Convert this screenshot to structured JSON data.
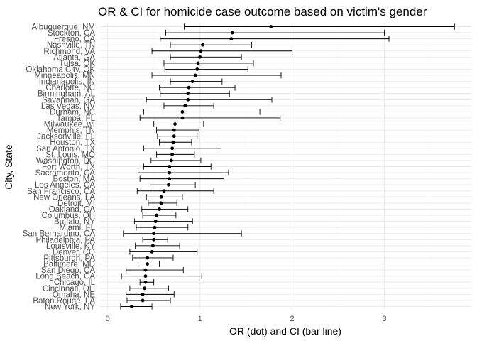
{
  "chart_data": {
    "type": "errorbar",
    "title": "OR & CI for homicide case outcome based on victim's gender",
    "xlabel": "OR (dot) and CI (bar line)",
    "ylabel": "City, State",
    "xlim": [
      -0.09,
      3.95
    ],
    "xticks": [
      0,
      1,
      2,
      3
    ],
    "grid": true,
    "orientation": "horizontal",
    "categories": [
      "Albuquerque, NM",
      "Stockton, CA",
      "Fresno, CA",
      "Nashville, TN",
      "Richmond, VA",
      "Atlanta, GA",
      "Tulsa, OK",
      "Oklahoma City, OK",
      "Minneapolis, MN",
      "Indianapolis, IN",
      "Charlotte, NC",
      "Birmingham, AL",
      "Savannah, GA",
      "Las Vegas, NV",
      "Durham, NC",
      "Tampa, FL",
      "Milwaukee, wI",
      "Memphis, TN",
      "Jacksonville, FL",
      "Houston, TX",
      "San Antonio, TX",
      "St. Louis, MO",
      "Washington, DC",
      "Fort Worth, TX",
      "Sacramento, CA",
      "Boston, MA",
      "Los Angeles, CA",
      "San Francisco, CA",
      "New Orleans, LA",
      "Detroit, MI",
      "Oakland, CA",
      "Columbus, OH",
      "Buffalo, NY",
      "Miami, FL",
      "San Bernardino, CA",
      "Philadelphia, PA",
      "Louisville, KY",
      "Denver, CO",
      "Pittsburgh, PA",
      "Baltimore, MD",
      "San Diego, CA",
      "Long Beach, CA",
      "Chicago, IL",
      "Cincinnati, OH",
      "Omaha, NE",
      "Baton Rouge, LA",
      "New York, NY"
    ],
    "or": [
      1.77,
      1.35,
      1.34,
      1.03,
      1.01,
      1.0,
      0.98,
      0.97,
      0.95,
      0.92,
      0.88,
      0.87,
      0.87,
      0.84,
      0.81,
      0.81,
      0.73,
      0.72,
      0.72,
      0.71,
      0.7,
      0.7,
      0.69,
      0.67,
      0.67,
      0.67,
      0.66,
      0.61,
      0.58,
      0.58,
      0.56,
      0.53,
      0.52,
      0.51,
      0.5,
      0.5,
      0.49,
      0.48,
      0.43,
      0.43,
      0.41,
      0.41,
      0.41,
      0.4,
      0.38,
      0.38,
      0.26
    ],
    "ci_low": [
      0.83,
      0.63,
      0.57,
      0.68,
      0.48,
      0.68,
      0.61,
      0.62,
      0.48,
      0.68,
      0.56,
      0.57,
      0.42,
      0.61,
      0.39,
      0.35,
      0.5,
      0.53,
      0.54,
      0.56,
      0.39,
      0.53,
      0.47,
      0.39,
      0.33,
      0.35,
      0.46,
      0.32,
      0.42,
      0.44,
      0.37,
      0.38,
      0.29,
      0.31,
      0.17,
      0.38,
      0.3,
      0.24,
      0.27,
      0.33,
      0.2,
      0.15,
      0.35,
      0.24,
      0.2,
      0.21,
      0.14
    ],
    "ci_high": [
      3.76,
      3.0,
      3.05,
      1.56,
      2.0,
      1.45,
      1.58,
      1.52,
      1.88,
      1.24,
      1.38,
      1.32,
      1.78,
      1.15,
      1.65,
      1.87,
      1.04,
      0.99,
      0.97,
      0.91,
      1.23,
      0.94,
      1.01,
      1.12,
      1.31,
      1.26,
      0.95,
      1.15,
      0.81,
      0.75,
      0.87,
      0.74,
      0.92,
      0.87,
      1.45,
      0.65,
      0.78,
      0.97,
      0.71,
      0.56,
      0.82,
      1.02,
      0.5,
      0.66,
      0.72,
      0.68,
      0.48
    ]
  }
}
